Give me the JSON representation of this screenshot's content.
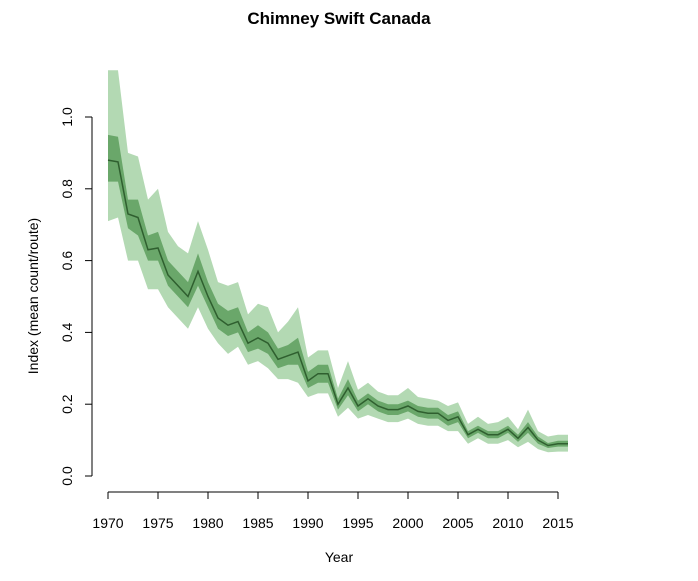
{
  "chart_data": {
    "type": "line",
    "title": "Chimney Swift Canada",
    "xlabel": "Year",
    "ylabel": "Index (mean count/route)",
    "xlim": [
      1970,
      2016
    ],
    "ylim": [
      0,
      1.1
    ],
    "x_ticks": [
      1970,
      1975,
      1980,
      1985,
      1990,
      1995,
      2000,
      2005,
      2010,
      2015
    ],
    "y_ticks": [
      0.0,
      0.2,
      0.4,
      0.6,
      0.8,
      1.0
    ],
    "y_tick_labels": [
      "0.0",
      "0.2",
      "0.4",
      "0.6",
      "0.8",
      "1.0"
    ],
    "grid": false,
    "legend": "none",
    "colors": {
      "line": "#2f5f2f",
      "inner_band": "#6aa76a",
      "outer_band": "#b3d9b3"
    },
    "x": [
      1970,
      1971,
      1972,
      1973,
      1974,
      1975,
      1976,
      1977,
      1978,
      1979,
      1980,
      1981,
      1982,
      1983,
      1984,
      1985,
      1986,
      1987,
      1988,
      1989,
      1990,
      1991,
      1992,
      1993,
      1994,
      1995,
      1996,
      1997,
      1998,
      1999,
      2000,
      2001,
      2002,
      2003,
      2004,
      2005,
      2006,
      2007,
      2008,
      2009,
      2010,
      2011,
      2012,
      2013,
      2014,
      2015,
      2016
    ],
    "series": [
      {
        "values": [
          0.88,
          0.875,
          0.73,
          0.72,
          0.63,
          0.635,
          0.56,
          0.53,
          0.5,
          0.57,
          0.5,
          0.44,
          0.42,
          0.43,
          0.37,
          0.385,
          0.37,
          0.325,
          0.335,
          0.345,
          0.265,
          0.285,
          0.285,
          0.2,
          0.245,
          0.195,
          0.215,
          0.195,
          0.185,
          0.185,
          0.195,
          0.18,
          0.175,
          0.175,
          0.155,
          0.165,
          0.115,
          0.13,
          0.115,
          0.115,
          0.13,
          0.105,
          0.135,
          0.1,
          0.085,
          0.09,
          0.09
        ],
        "inner_lower": [
          0.82,
          0.82,
          0.69,
          0.67,
          0.6,
          0.6,
          0.53,
          0.5,
          0.47,
          0.53,
          0.47,
          0.41,
          0.39,
          0.4,
          0.345,
          0.355,
          0.34,
          0.3,
          0.31,
          0.31,
          0.245,
          0.26,
          0.26,
          0.185,
          0.225,
          0.18,
          0.2,
          0.18,
          0.17,
          0.17,
          0.18,
          0.165,
          0.16,
          0.16,
          0.14,
          0.15,
          0.105,
          0.12,
          0.105,
          0.105,
          0.12,
          0.095,
          0.12,
          0.09,
          0.078,
          0.082,
          0.082
        ],
        "inner_upper": [
          0.95,
          0.945,
          0.77,
          0.77,
          0.67,
          0.68,
          0.6,
          0.57,
          0.54,
          0.62,
          0.54,
          0.48,
          0.46,
          0.47,
          0.4,
          0.42,
          0.4,
          0.355,
          0.365,
          0.385,
          0.29,
          0.31,
          0.31,
          0.215,
          0.27,
          0.21,
          0.23,
          0.21,
          0.2,
          0.2,
          0.21,
          0.195,
          0.19,
          0.19,
          0.17,
          0.18,
          0.125,
          0.14,
          0.125,
          0.125,
          0.14,
          0.115,
          0.15,
          0.11,
          0.092,
          0.098,
          0.098
        ],
        "outer_lower": [
          0.71,
          0.72,
          0.6,
          0.6,
          0.52,
          0.52,
          0.47,
          0.44,
          0.41,
          0.47,
          0.41,
          0.37,
          0.34,
          0.36,
          0.31,
          0.32,
          0.3,
          0.27,
          0.27,
          0.26,
          0.22,
          0.23,
          0.23,
          0.165,
          0.19,
          0.16,
          0.17,
          0.16,
          0.15,
          0.15,
          0.16,
          0.145,
          0.14,
          0.14,
          0.125,
          0.125,
          0.09,
          0.105,
          0.09,
          0.09,
          0.1,
          0.08,
          0.095,
          0.075,
          0.066,
          0.068,
          0.068
        ],
        "outer_upper": [
          1.13,
          1.13,
          0.9,
          0.89,
          0.77,
          0.8,
          0.68,
          0.64,
          0.62,
          0.71,
          0.63,
          0.54,
          0.53,
          0.54,
          0.45,
          0.48,
          0.47,
          0.4,
          0.43,
          0.47,
          0.33,
          0.35,
          0.35,
          0.245,
          0.32,
          0.24,
          0.26,
          0.235,
          0.225,
          0.225,
          0.245,
          0.22,
          0.215,
          0.21,
          0.195,
          0.205,
          0.145,
          0.165,
          0.145,
          0.15,
          0.165,
          0.13,
          0.185,
          0.125,
          0.11,
          0.115,
          0.115
        ]
      }
    ]
  }
}
